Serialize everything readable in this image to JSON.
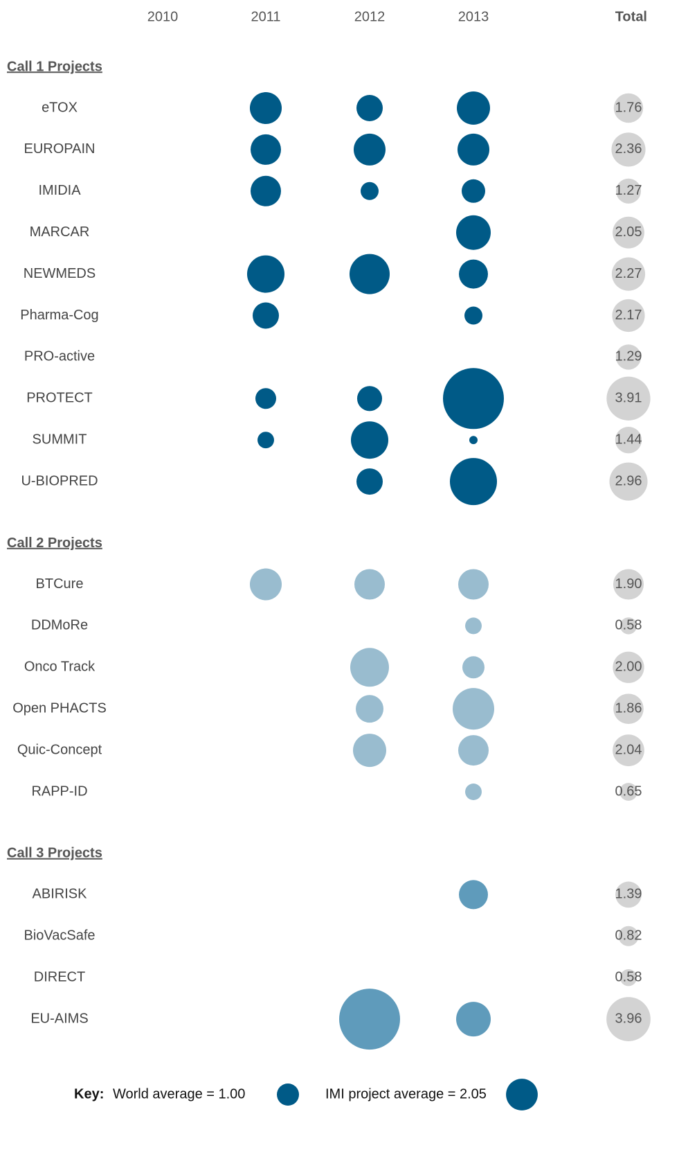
{
  "chart_data": {
    "type": "bubble",
    "columns": [
      "2010",
      "2011",
      "2012",
      "2013"
    ],
    "total_header": "Total",
    "total_color": "#d3d3d3",
    "groups": [
      {
        "title": "Call 1 Projects",
        "color": "#005a87",
        "projects": [
          {
            "name": "eTOX",
            "values": [
              null,
              2.07,
              1.41,
              2.25
            ],
            "total": 1.76,
            "total_label": "1.76"
          },
          {
            "name": "EUROPAIN",
            "values": [
              null,
              1.89,
              2.07,
              2.07
            ],
            "total": 2.36,
            "total_label": "2.36"
          },
          {
            "name": "IMIDIA",
            "values": [
              null,
              1.89,
              0.66,
              1.13
            ],
            "total": 1.27,
            "total_label": "1.27"
          },
          {
            "name": "MARCAR",
            "values": [
              null,
              null,
              null,
              2.44
            ],
            "total": 2.05,
            "total_label": "2.05"
          },
          {
            "name": "NEWMEDS",
            "values": [
              null,
              2.85,
              3.29,
              1.72
            ],
            "total": 2.27,
            "total_label": "2.27"
          },
          {
            "name": "Pharma-Cog",
            "values": [
              null,
              1.41,
              null,
              0.66
            ],
            "total": 2.17,
            "total_label": "2.17"
          },
          {
            "name": "PRO-active",
            "values": [
              null,
              null,
              null,
              null
            ],
            "total": 1.29,
            "total_label": "1.29"
          },
          {
            "name": "PROTECT",
            "values": [
              null,
              0.88,
              1.27,
              7.56
            ],
            "total": 3.91,
            "total_label": "3.91"
          },
          {
            "name": "SUMMIT",
            "values": [
              null,
              0.56,
              2.85,
              0.14
            ],
            "total": 1.44,
            "total_label": "1.44"
          },
          {
            "name": "U-BIOPRED",
            "values": [
              null,
              null,
              1.41,
              4.52
            ],
            "total": 2.96,
            "total_label": "2.96"
          }
        ]
      },
      {
        "title": "Call 2 Projects",
        "color": "#99bccf",
        "projects": [
          {
            "name": "BTCure",
            "values": [
              null,
              2.07,
              1.89,
              1.89
            ],
            "total": 1.9,
            "total_label": "1.90"
          },
          {
            "name": "DDMoRe",
            "values": [
              null,
              null,
              null,
              0.56
            ],
            "total": 0.58,
            "total_label": "0.58"
          },
          {
            "name": "Onco Track",
            "values": [
              null,
              null,
              3.06,
              1.0
            ],
            "total": 2.0,
            "total_label": "2.00"
          },
          {
            "name": "Open PHACTS",
            "values": [
              null,
              null,
              1.56,
              3.52
            ],
            "total": 1.86,
            "total_label": "1.86"
          },
          {
            "name": "Quic-Concept",
            "values": [
              null,
              null,
              2.25,
              1.89
            ],
            "total": 2.04,
            "total_label": "2.04"
          },
          {
            "name": "RAPP-ID",
            "values": [
              null,
              null,
              null,
              0.56
            ],
            "total": 0.65,
            "total_label": "0.65"
          }
        ]
      },
      {
        "title": "Call 3 Projects",
        "color": "#5f9bbb",
        "projects": [
          {
            "name": "ABIRISK",
            "values": [
              null,
              null,
              null,
              1.72
            ],
            "total": 1.39,
            "total_label": "1.39"
          },
          {
            "name": "BioVacSafe",
            "values": [
              null,
              null,
              null,
              null
            ],
            "total": 0.82,
            "total_label": "0.82"
          },
          {
            "name": "DIRECT",
            "values": [
              null,
              null,
              null,
              null
            ],
            "total": 0.58,
            "total_label": "0.58"
          },
          {
            "name": "EU-AIMS",
            "values": [
              null,
              null,
              7.56,
              2.44
            ],
            "total": 3.96,
            "total_label": "3.96"
          }
        ]
      }
    ],
    "key": {
      "label": "Key:",
      "color": "#005a87",
      "items": [
        {
          "text": "World average = 1.00",
          "value": 1.0
        },
        {
          "text": "IMI project average = 2.05",
          "value": 2.05
        }
      ]
    }
  }
}
